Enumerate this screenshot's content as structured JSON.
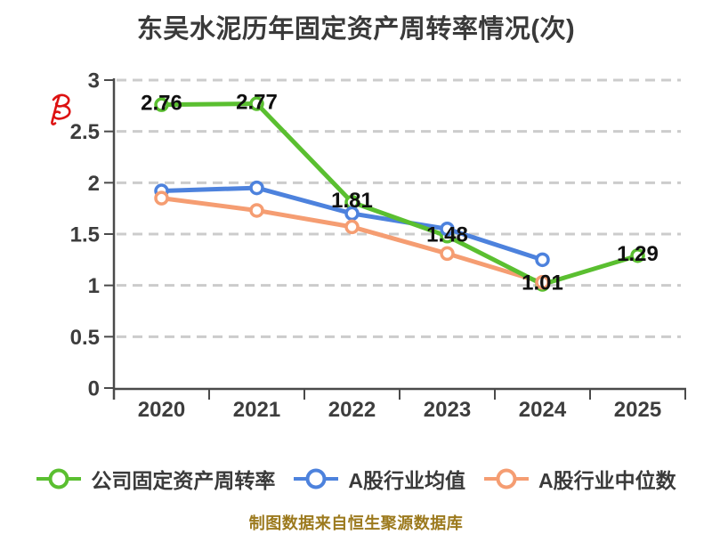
{
  "title": "东吴水泥历年固定资产周转率情况(次)",
  "footer": "制图数据来自恒生聚源数据库",
  "colors": {
    "company": "#5abf30",
    "industry_mean": "#4d82dd",
    "industry_median": "#f59d72",
    "grid": "#cccccc",
    "axis": "#4a4a4a",
    "title_text": "#3a3a3a",
    "data_label": "#101010",
    "footer_text": "#9c7a1e",
    "scribble": "#dd1111",
    "background": "#ffffff"
  },
  "chart_data": {
    "type": "line",
    "categories": [
      "2020",
      "2021",
      "2022",
      "2023",
      "2024",
      "2025"
    ],
    "series": [
      {
        "name": "公司固定资产周转率",
        "color": "#5abf30",
        "values": [
          2.76,
          2.77,
          1.81,
          1.48,
          1.01,
          1.29
        ],
        "labels": [
          "2.76",
          "2.77",
          "1.81",
          "1.48",
          "1.01",
          "1.29"
        ]
      },
      {
        "name": "A股行业均值",
        "color": "#4d82dd",
        "values": [
          1.92,
          1.95,
          1.7,
          1.55,
          1.25,
          null
        ],
        "labels": null
      },
      {
        "name": "A股行业中位数",
        "color": "#f59d72",
        "values": [
          1.85,
          1.73,
          1.57,
          1.31,
          1.03,
          null
        ],
        "labels": null
      }
    ],
    "xlabel": "",
    "ylabel": "",
    "ylim": [
      0,
      3
    ],
    "yticks": [
      0,
      0.5,
      1,
      1.5,
      2,
      2.5,
      3
    ],
    "ytick_labels": [
      "0",
      "0.5",
      "1",
      "1.5",
      "2",
      "2.5",
      "3"
    ],
    "grid": "dashed-horizontal",
    "legend_position": "bottom",
    "marker": "circle-white-fill"
  }
}
